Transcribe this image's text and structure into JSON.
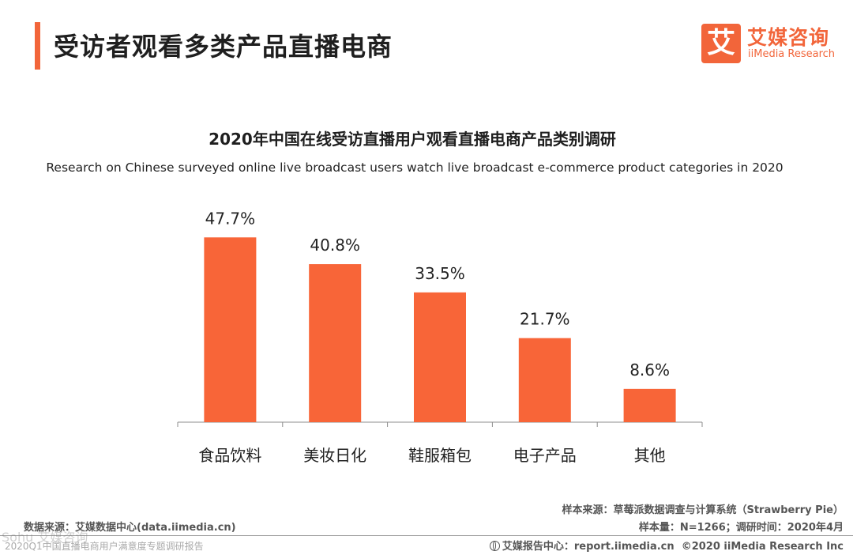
{
  "header": {
    "title": "受访者观看多类产品直播电商"
  },
  "logo": {
    "mark": "艾",
    "name_cn": "艾媒咨询",
    "name_en": "iiMedia Research"
  },
  "chart_data": {
    "type": "bar",
    "title": "2020年中国在线受访直播用户观看直播电商产品类别调研",
    "subtitle": "Research on Chinese surveyed online live broadcast users watch live broadcast e-commerce product categories in 2020",
    "categories": [
      "食品饮料",
      "美妆日化",
      "鞋服箱包",
      "电子产品",
      "其他"
    ],
    "values": [
      47.7,
      40.8,
      33.5,
      21.7,
      8.6
    ],
    "value_labels": [
      "47.7%",
      "40.8%",
      "33.5%",
      "21.7%",
      "8.6%"
    ],
    "unit": "%",
    "ylim": [
      0,
      50
    ],
    "grid": false,
    "legend": "none",
    "bar_color": "#f86538"
  },
  "footer": {
    "data_source": "数据来源：艾媒数据中心(data.iimedia.cn)",
    "sample_source": "样本来源：草莓派数据调查与计算系统（Strawberry Pie）",
    "sample_info": "样本量：N=1266；调研时间：2020年4月",
    "report_center": "艾媒报告中心：report.iimedia.cn",
    "copyright": "©2020  iiMedia Research  Inc",
    "report_name": "2020Q1中国直播电商用户满意度专题调研报告",
    "watermark": "Sohu 艾媒咨询"
  }
}
